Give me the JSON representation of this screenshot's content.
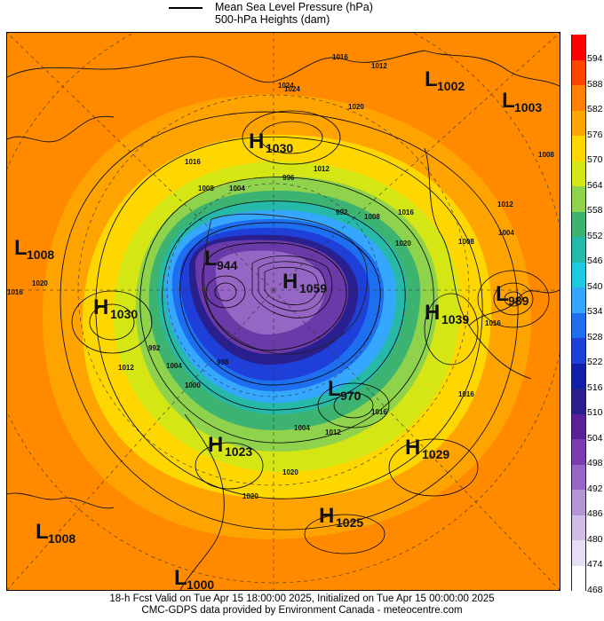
{
  "legend": {
    "line1": "Mean Sea Level Pressure (hPa)",
    "line2": "500-hPa Heights (dam)"
  },
  "colorbar": {
    "ticks": [
      "594",
      "588",
      "582",
      "576",
      "570",
      "564",
      "558",
      "552",
      "546",
      "540",
      "534",
      "528",
      "522",
      "516",
      "510",
      "504",
      "498",
      "492",
      "486",
      "480",
      "474",
      "468"
    ],
    "colors": [
      "#ff0000",
      "#ff4500",
      "#ff7f00",
      "#ffa500",
      "#ffd700",
      "#d4e614",
      "#8fd24b",
      "#3cb371",
      "#26b8a8",
      "#1fc9e0",
      "#35a7ff",
      "#1e6ff0",
      "#1f3fd9",
      "#0f1fa8",
      "#2a1f8f",
      "#5a1f99",
      "#7a3cb0",
      "#9566c4",
      "#b394d6",
      "#cfbfe6",
      "#e6def2",
      "#ffffff"
    ]
  },
  "systems": [
    {
      "letter": "L",
      "value": "1002"
    },
    {
      "letter": "L",
      "value": "1003"
    },
    {
      "letter": "H",
      "value": "1030"
    },
    {
      "letter": "L",
      "value": "1008"
    },
    {
      "letter": "L",
      "value": "944"
    },
    {
      "letter": "H",
      "value": "1059"
    },
    {
      "letter": "H",
      "value": "1030"
    },
    {
      "letter": "H",
      "value": "1039"
    },
    {
      "letter": "L",
      "value": "989"
    },
    {
      "letter": "L",
      "value": "970"
    },
    {
      "letter": "H",
      "value": "1023"
    },
    {
      "letter": "H",
      "value": "1029"
    },
    {
      "letter": "H",
      "value": "1025"
    },
    {
      "letter": "L",
      "value": "1008"
    },
    {
      "letter": "L",
      "value": "1000"
    }
  ],
  "isobar_labels": [
    "1016",
    "1012",
    "1024",
    "1020",
    "1016",
    "1012",
    "1008",
    "1004",
    "996",
    "992",
    "1008",
    "1016",
    "1020",
    "1016",
    "1020",
    "1024",
    "1004",
    "1012",
    "1008",
    "1016",
    "1012",
    "1004",
    "992",
    "1000",
    "988",
    "1016",
    "1016",
    "1012",
    "1004",
    "1020",
    "1020",
    "1008"
  ],
  "footer": {
    "line1": "18-h Fcst Valid on Tue Apr 15 18:00:00 2025, Initialized on Tue Apr 15 00:00:00 2025",
    "line2": "CMC-GDPS data provided by Environment Canada - meteocentre.com"
  }
}
